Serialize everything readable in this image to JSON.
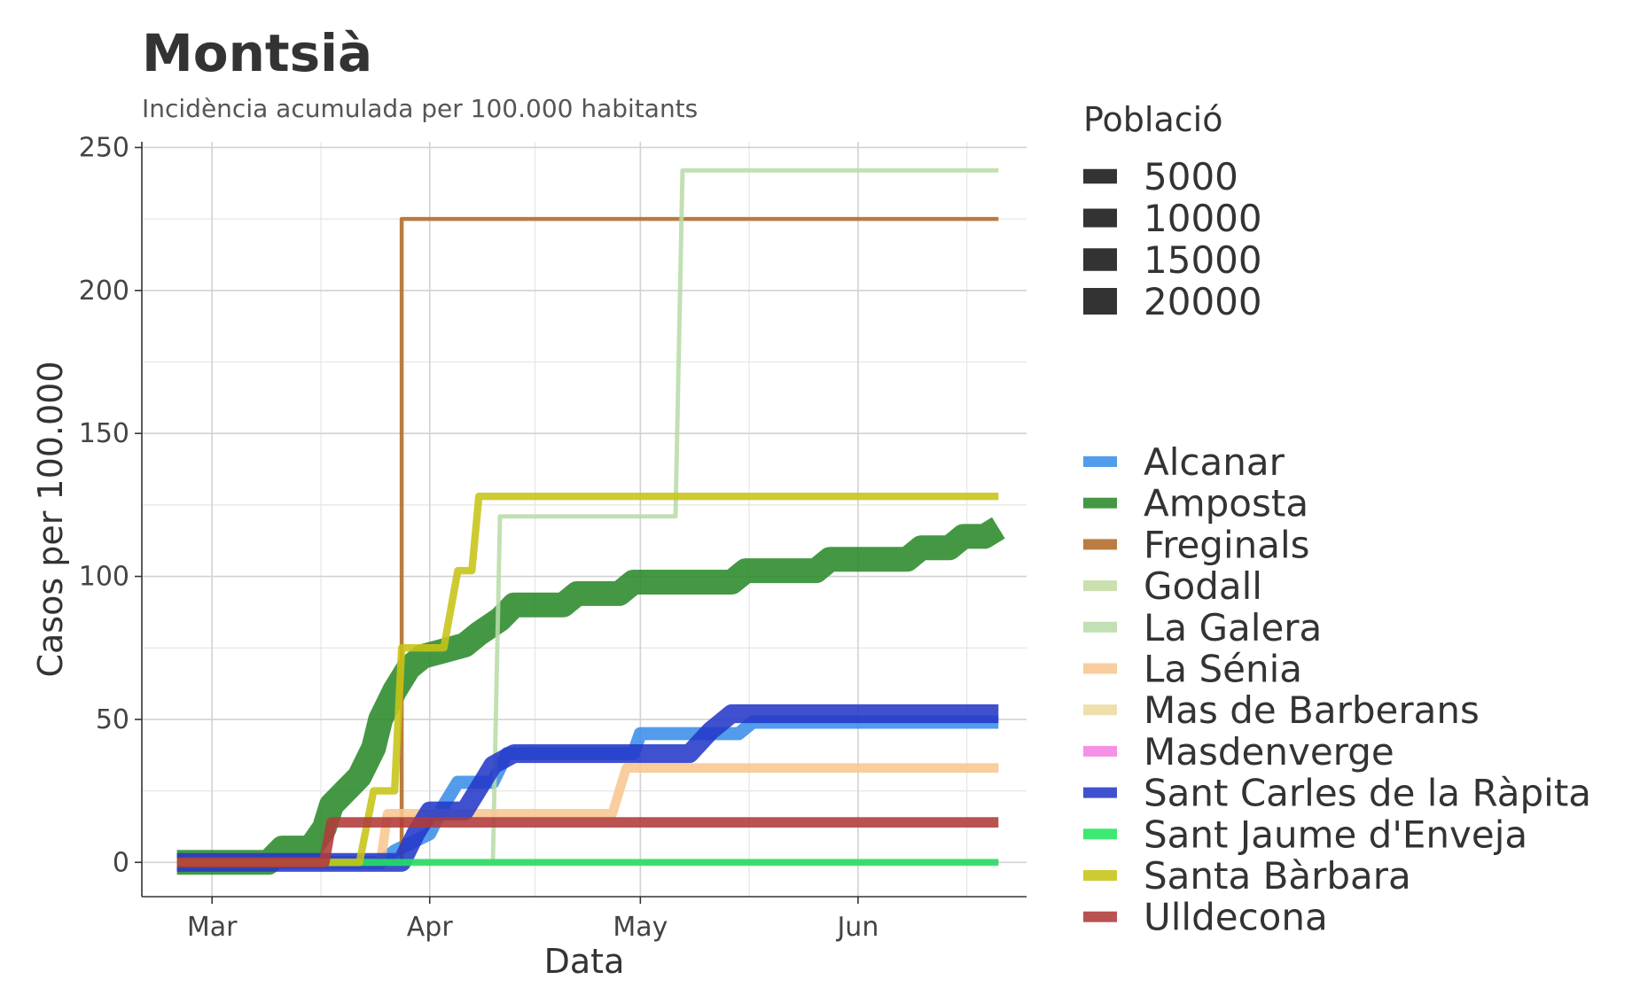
{
  "chart_data": {
    "type": "line",
    "title": "Montsià",
    "subtitle": "Incidència acumulada per 100.000 habitants",
    "xlabel": "Data",
    "ylabel": "Casos per 100.000",
    "ylim": [
      -12,
      252
    ],
    "xlim": [
      "2020-02-20",
      "2020-06-25"
    ],
    "x_ticks": [
      {
        "date": "2020-03-01",
        "label": "Mar"
      },
      {
        "date": "2020-04-01",
        "label": "Apr"
      },
      {
        "date": "2020-05-01",
        "label": "May"
      },
      {
        "date": "2020-06-01",
        "label": "Jun"
      }
    ],
    "y_ticks": [
      0,
      50,
      100,
      150,
      200,
      250
    ],
    "grid": true,
    "legend_size": {
      "title": "Població",
      "entries": [
        {
          "label": "5000",
          "value": 5000
        },
        {
          "label": "10000",
          "value": 10000
        },
        {
          "label": "15000",
          "value": 15000
        },
        {
          "label": "20000",
          "value": 20000
        }
      ]
    },
    "legend_position": "right",
    "series": [
      {
        "name": "Alcanar",
        "color": "#3b8ee8",
        "population": 9500,
        "points": [
          [
            "2020-02-25",
            0
          ],
          [
            "2020-03-25",
            0
          ],
          [
            "2020-03-27",
            4
          ],
          [
            "2020-04-01",
            10
          ],
          [
            "2020-04-03",
            20
          ],
          [
            "2020-04-05",
            28
          ],
          [
            "2020-04-10",
            28
          ],
          [
            "2020-04-12",
            38
          ],
          [
            "2020-04-30",
            38
          ],
          [
            "2020-05-01",
            45
          ],
          [
            "2020-05-15",
            45
          ],
          [
            "2020-05-17",
            49
          ],
          [
            "2020-06-21",
            49
          ]
        ]
      },
      {
        "name": "Amposta",
        "color": "#2a8a2a",
        "population": 21000,
        "points": [
          [
            "2020-02-25",
            0
          ],
          [
            "2020-03-09",
            0
          ],
          [
            "2020-03-11",
            5
          ],
          [
            "2020-03-15",
            5
          ],
          [
            "2020-03-17",
            12
          ],
          [
            "2020-03-18",
            20
          ],
          [
            "2020-03-20",
            25
          ],
          [
            "2020-03-22",
            30
          ],
          [
            "2020-03-24",
            40
          ],
          [
            "2020-03-25",
            50
          ],
          [
            "2020-03-27",
            60
          ],
          [
            "2020-03-29",
            68
          ],
          [
            "2020-03-31",
            72
          ],
          [
            "2020-04-03",
            74
          ],
          [
            "2020-04-06",
            76
          ],
          [
            "2020-04-08",
            80
          ],
          [
            "2020-04-11",
            85
          ],
          [
            "2020-04-13",
            90
          ],
          [
            "2020-04-20",
            90
          ],
          [
            "2020-04-22",
            94
          ],
          [
            "2020-04-28",
            94
          ],
          [
            "2020-04-30",
            98
          ],
          [
            "2020-05-14",
            98
          ],
          [
            "2020-05-16",
            102
          ],
          [
            "2020-05-26",
            102
          ],
          [
            "2020-05-28",
            106
          ],
          [
            "2020-06-08",
            106
          ],
          [
            "2020-06-10",
            110
          ],
          [
            "2020-06-14",
            110
          ],
          [
            "2020-06-16",
            114
          ],
          [
            "2020-06-19",
            114
          ],
          [
            "2020-06-21",
            117
          ]
        ]
      },
      {
        "name": "Freginals",
        "color": "#b06a28",
        "population": 450,
        "points": [
          [
            "2020-02-25",
            0
          ],
          [
            "2020-03-28",
            0
          ],
          [
            "2020-03-28",
            225
          ],
          [
            "2020-06-21",
            225
          ]
        ]
      },
      {
        "name": "Godall",
        "color": "#c5dba4",
        "population": 700,
        "points": [
          [
            "2020-02-25",
            0
          ],
          [
            "2020-06-21",
            0
          ]
        ]
      },
      {
        "name": "La Galera",
        "color": "#b8dca8",
        "population": 800,
        "points": [
          [
            "2020-02-25",
            0
          ],
          [
            "2020-04-10",
            0
          ],
          [
            "2020-04-11",
            121
          ],
          [
            "2020-05-06",
            121
          ],
          [
            "2020-05-07",
            242
          ],
          [
            "2020-06-21",
            242
          ]
        ]
      },
      {
        "name": "La Sénia",
        "color": "#f8c690",
        "population": 5900,
        "points": [
          [
            "2020-02-25",
            0
          ],
          [
            "2020-03-25",
            0
          ],
          [
            "2020-03-26",
            17
          ],
          [
            "2020-04-27",
            17
          ],
          [
            "2020-04-29",
            33
          ],
          [
            "2020-06-21",
            33
          ]
        ]
      },
      {
        "name": "Mas de Barberans",
        "color": "#ecdca0",
        "population": 600,
        "points": [
          [
            "2020-02-25",
            0
          ],
          [
            "2020-06-21",
            0
          ]
        ]
      },
      {
        "name": "Masdenverge",
        "color": "#f582e2",
        "population": 1100,
        "points": [
          [
            "2020-02-25",
            0
          ],
          [
            "2020-06-21",
            0
          ]
        ]
      },
      {
        "name": "Sant Carles de la Ràpita",
        "color": "#2439c8",
        "population": 15000,
        "points": [
          [
            "2020-02-25",
            0
          ],
          [
            "2020-03-28",
            0
          ],
          [
            "2020-03-30",
            10
          ],
          [
            "2020-04-01",
            18
          ],
          [
            "2020-04-06",
            18
          ],
          [
            "2020-04-08",
            26
          ],
          [
            "2020-04-10",
            34
          ],
          [
            "2020-04-13",
            38
          ],
          [
            "2020-05-08",
            38
          ],
          [
            "2020-05-11",
            46
          ],
          [
            "2020-05-14",
            52
          ],
          [
            "2020-06-21",
            52
          ]
        ]
      },
      {
        "name": "Sant Jaume d'Enveja",
        "color": "#22e560",
        "population": 3400,
        "points": [
          [
            "2020-02-25",
            0
          ],
          [
            "2020-06-21",
            0
          ]
        ]
      },
      {
        "name": "Santa Bàrbara",
        "color": "#c7c416",
        "population": 3800,
        "points": [
          [
            "2020-02-25",
            0
          ],
          [
            "2020-03-22",
            0
          ],
          [
            "2020-03-24",
            25
          ],
          [
            "2020-03-27",
            25
          ],
          [
            "2020-03-28",
            75
          ],
          [
            "2020-04-03",
            75
          ],
          [
            "2020-04-05",
            102
          ],
          [
            "2020-04-07",
            102
          ],
          [
            "2020-04-08",
            128
          ],
          [
            "2020-06-21",
            128
          ]
        ]
      },
      {
        "name": "Ulldecona",
        "color": "#b03a3a",
        "population": 6800,
        "points": [
          [
            "2020-02-25",
            0
          ],
          [
            "2020-03-17",
            0
          ],
          [
            "2020-03-18",
            14
          ],
          [
            "2020-06-21",
            14
          ]
        ]
      }
    ]
  }
}
